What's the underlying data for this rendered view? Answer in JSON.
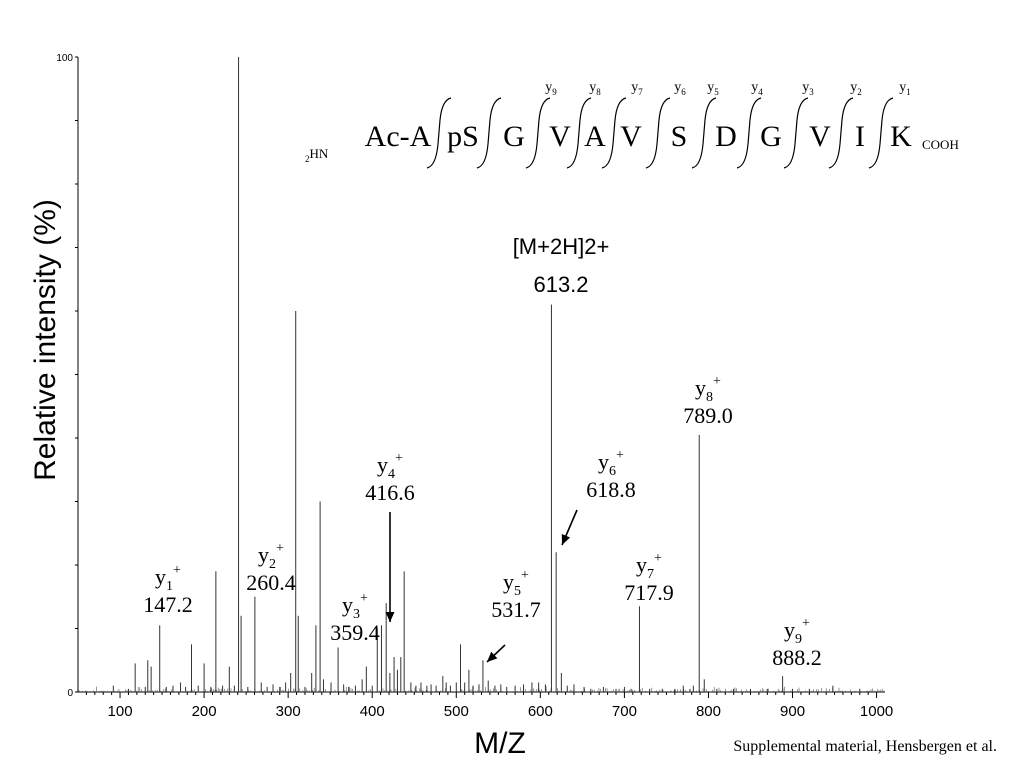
{
  "chart_data": {
    "type": "bar",
    "xlabel": "M/Z",
    "ylabel": "Relative intensity (%)",
    "xlim": [
      50,
      1010
    ],
    "ylim": [
      0,
      100
    ],
    "x_ticks": [
      "100",
      "200",
      "300",
      "400",
      "500",
      "600",
      "700",
      "800",
      "900",
      "1000"
    ],
    "y_ticks": [
      "0",
      "100"
    ],
    "grid": false,
    "series": [
      {
        "x": [
          92,
          110,
          118,
          130,
          133,
          137,
          147.2,
          155,
          163,
          172,
          178,
          185,
          193,
          200,
          208,
          214,
          222,
          230,
          236,
          241,
          244,
          252,
          260.4,
          268,
          275,
          282,
          290,
          297,
          303,
          309,
          312,
          320,
          328,
          333,
          338,
          342,
          351,
          359.4,
          366,
          372,
          380,
          388,
          393,
          400,
          406,
          411,
          416.6,
          421,
          426,
          430,
          434,
          438,
          446,
          452,
          458,
          465,
          470,
          476,
          484,
          488,
          493,
          500,
          505,
          510,
          515,
          520,
          527,
          531.7,
          538,
          546,
          553,
          560,
          570,
          580,
          590,
          598,
          606,
          613.2,
          618.8,
          625,
          632,
          640,
          652,
          660,
          675,
          690,
          700,
          708,
          717.9,
          730,
          745,
          760,
          770,
          778,
          782,
          789.0,
          795,
          810,
          830,
          850,
          870,
          888.2,
          900,
          920,
          948,
          980
        ],
        "values": [
          1,
          0.5,
          4.5,
          0.8,
          5,
          4,
          10.5,
          0.8,
          1,
          1.5,
          0.8,
          7.5,
          1,
          4.5,
          0.8,
          19,
          1,
          4,
          1,
          100,
          12,
          0.8,
          15,
          1.5,
          0.8,
          1.2,
          0.8,
          1.5,
          3,
          60,
          12,
          0.8,
          3,
          10.5,
          30,
          2,
          1.5,
          7,
          1.2,
          0.8,
          1,
          2,
          4,
          1,
          10,
          10.5,
          14,
          3,
          5.5,
          3.5,
          5.5,
          19,
          1.5,
          1,
          1.5,
          1,
          1.2,
          1,
          2.5,
          1.5,
          1,
          1.5,
          7.5,
          1.5,
          3.5,
          1,
          1.2,
          5,
          1.8,
          1,
          1.2,
          0.8,
          1,
          1.2,
          1.5,
          1.5,
          1.2,
          61,
          22,
          3,
          1,
          1.2,
          0.8,
          0.5,
          0.8,
          0.5,
          0.8,
          0.5,
          13.5,
          0.5,
          0.5,
          0.5,
          1,
          0.5,
          1,
          40.5,
          2,
          0.5,
          0.5,
          0.5,
          0.5,
          2.5,
          0.5,
          0.5,
          1,
          0.5
        ]
      }
    ],
    "annotations": [
      {
        "type": "ion",
        "ion": "y",
        "sub": "1",
        "sup": "+",
        "mz": "147.2",
        "peak": 147.2
      },
      {
        "type": "ion",
        "ion": "y",
        "sub": "2",
        "sup": "+",
        "mz": "260.4",
        "peak": 260.4
      },
      {
        "type": "ion",
        "ion": "y",
        "sub": "3",
        "sup": "+",
        "mz": "359.4",
        "peak": 359.4
      },
      {
        "type": "ion",
        "ion": "y",
        "sub": "4",
        "sup": "+",
        "mz": "416.6",
        "peak": 416.6,
        "arrow": true
      },
      {
        "type": "ion",
        "ion": "y",
        "sub": "5",
        "sup": "+",
        "mz": "531.7",
        "peak": 531.7,
        "arrow": true
      },
      {
        "type": "ion",
        "ion": "y",
        "sub": "6",
        "sup": "+",
        "mz": "618.8",
        "peak": 618.8,
        "arrow": true
      },
      {
        "type": "ion",
        "ion": "y",
        "sub": "7",
        "sup": "+",
        "mz": "717.9",
        "peak": 717.9
      },
      {
        "type": "ion",
        "ion": "y",
        "sub": "8",
        "sup": "+",
        "mz": "789.0",
        "peak": 789.0
      },
      {
        "type": "ion",
        "ion": "y",
        "sub": "9",
        "sup": "+",
        "mz": "888.2",
        "peak": 888.2
      },
      {
        "type": "precursor",
        "label": "[M+2H]2+",
        "mz": "613.2",
        "peak": 613.2
      }
    ],
    "peptide": {
      "n_term": "2HN",
      "c_term": "COOH",
      "residues": [
        "Ac-A",
        "pS",
        "G",
        "V",
        "A",
        "V",
        "S",
        "D",
        "G",
        "V",
        "I",
        "K"
      ],
      "fragment_labels": [
        "y9",
        "y8",
        "y7",
        "y6",
        "y5",
        "y4",
        "y3",
        "y2",
        "y1"
      ]
    }
  },
  "footer": {
    "credit": "Supplemental material, Hensbergen et al."
  }
}
